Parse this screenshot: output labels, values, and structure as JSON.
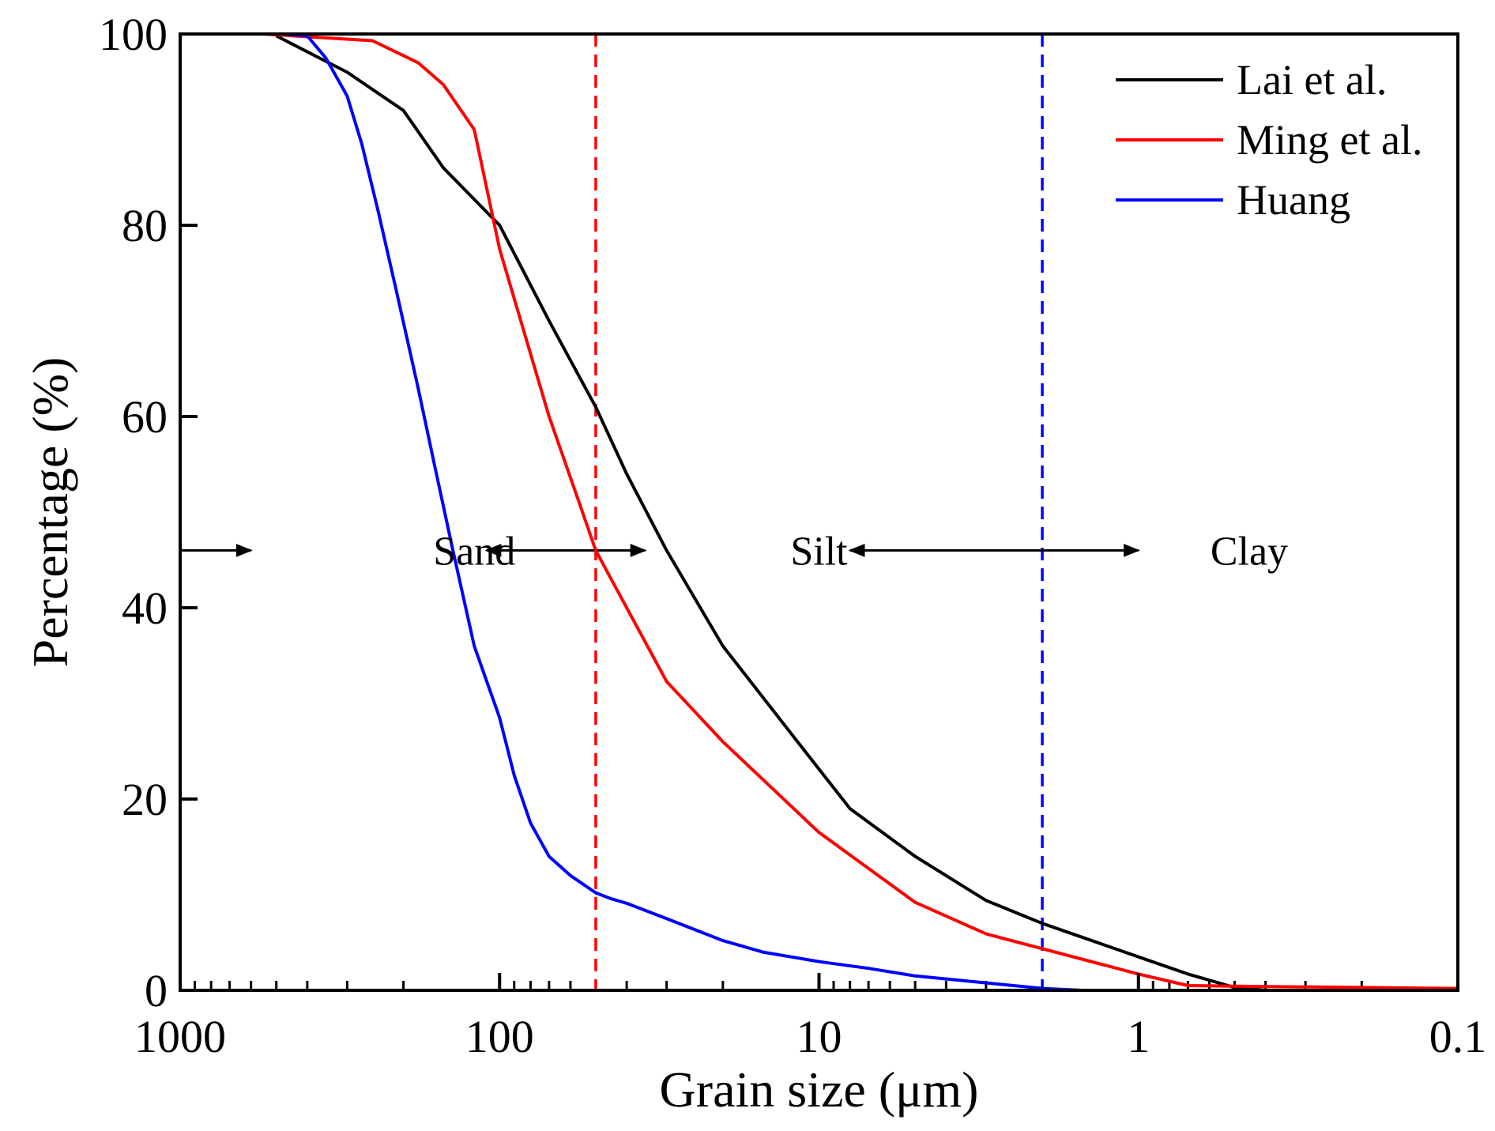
{
  "chart_data": {
    "type": "line",
    "x_scale": "log",
    "x_reversed": true,
    "xlabel": "Grain size (μm)",
    "ylabel": "Percentage  (%)",
    "xlim": [
      1000,
      0.1
    ],
    "ylim": [
      0,
      100
    ],
    "x_ticks": [
      {
        "value": 1000,
        "label": "1000"
      },
      {
        "value": 100,
        "label": "100"
      },
      {
        "value": 10,
        "label": "10"
      },
      {
        "value": 1,
        "label": "1"
      },
      {
        "value": 0.1,
        "label": "0.1"
      }
    ],
    "y_ticks": [
      {
        "value": 0,
        "label": "0"
      },
      {
        "value": 20,
        "label": "20"
      },
      {
        "value": 40,
        "label": "40"
      },
      {
        "value": 60,
        "label": "60"
      },
      {
        "value": 80,
        "label": "80"
      },
      {
        "value": 100,
        "label": "100"
      }
    ],
    "legend_position": "top-right",
    "series": [
      {
        "name": "Lai et al.",
        "color": "#000000",
        "x": [
          500,
          300,
          200,
          150,
          100,
          70,
          50,
          40,
          30,
          20,
          12,
          8,
          5,
          3,
          2,
          1,
          0.7,
          0.5,
          0.4,
          0.1
        ],
        "y": [
          99.8,
          96,
          92,
          86,
          80,
          70,
          61,
          54,
          46,
          36,
          26.5,
          19,
          14,
          9.4,
          7,
          3.5,
          1.7,
          0.3,
          0,
          0
        ]
      },
      {
        "name": "Ming et al.",
        "color": "#ff0000",
        "x": [
          550,
          250,
          180,
          150,
          120,
          100,
          70,
          55,
          50,
          40,
          30,
          20,
          10,
          5,
          3,
          1,
          0.7,
          0.4,
          0.2,
          0.1
        ],
        "y": [
          100,
          99.3,
          97,
          94.7,
          90,
          77.5,
          60,
          50,
          46,
          40,
          32.3,
          26,
          16.5,
          9.2,
          5.9,
          1.7,
          0.5,
          0.4,
          0.3,
          0.2
        ]
      },
      {
        "name": "Huang",
        "color": "#0000ff",
        "x": [
          480,
          400,
          350,
          300,
          270,
          240,
          210,
          180,
          160,
          140,
          120,
          100,
          90,
          80,
          70,
          60,
          50,
          45,
          40,
          30,
          20,
          15,
          10,
          7,
          5,
          2,
          1.5
        ],
        "y": [
          100,
          99.8,
          97.5,
          93.5,
          88.5,
          81.5,
          73,
          63,
          55,
          46,
          36,
          28.5,
          22.5,
          17.5,
          14,
          12,
          10.2,
          9.6,
          9.1,
          7.5,
          5.2,
          4,
          3,
          2.3,
          1.5,
          0.2,
          0
        ]
      }
    ],
    "reference_lines": [
      {
        "x": 50,
        "color": "#ff0000",
        "style": "dashed"
      },
      {
        "x": 2,
        "color": "#0000ff",
        "style": "dashed"
      }
    ],
    "annotations": [
      {
        "text": "Sand",
        "x": 120,
        "y": 46
      },
      {
        "text": "Silt",
        "x": 10,
        "y": 46
      },
      {
        "text": "Clay",
        "x": 0.45,
        "y": 46
      }
    ],
    "arrows": [
      {
        "from": 1000,
        "to": 600,
        "y": 46,
        "heads": "end"
      },
      {
        "from": 110,
        "to": 35,
        "y": 46,
        "heads": "both"
      },
      {
        "from": 8,
        "to": 1,
        "y": 46,
        "heads": "both"
      }
    ]
  }
}
